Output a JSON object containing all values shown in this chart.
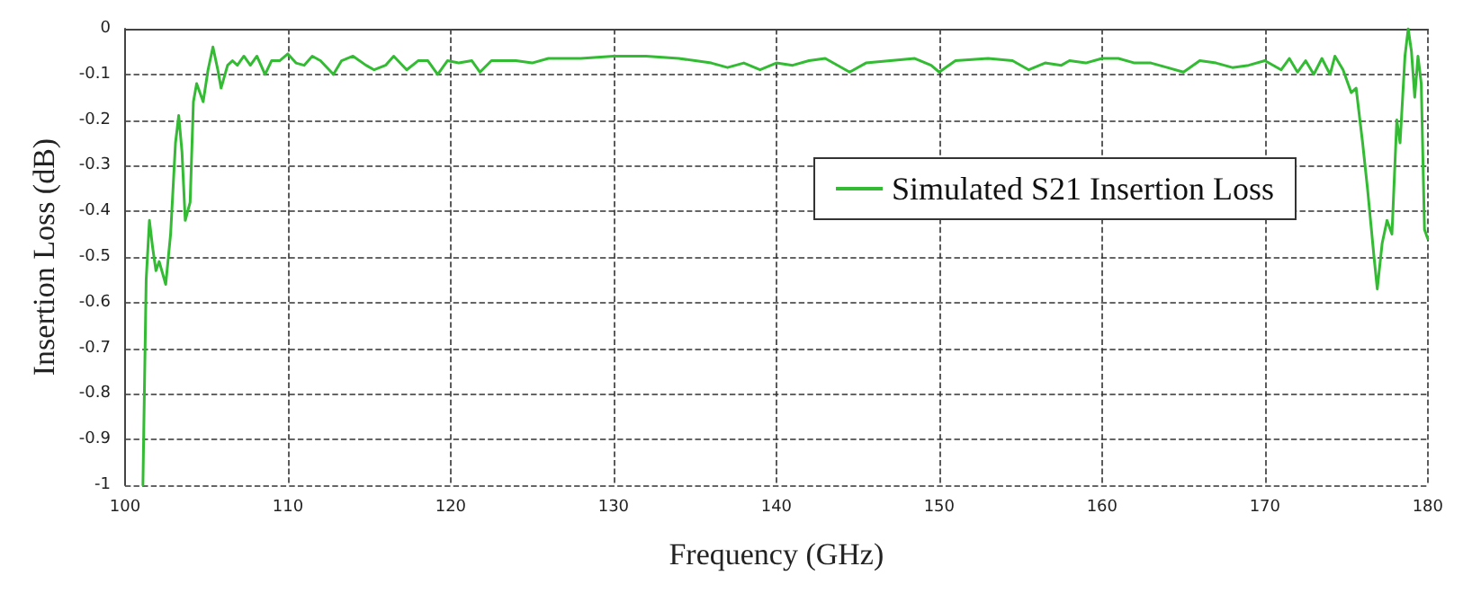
{
  "chart_data": {
    "type": "line",
    "xlabel": "Frequency (GHz)",
    "ylabel": "Insertion Loss (dB)",
    "xlim": [
      100,
      180
    ],
    "xticks": [
      100,
      110,
      120,
      130,
      140,
      150,
      160,
      170,
      180
    ],
    "ylim": [
      -1,
      0
    ],
    "yticks": [
      -1,
      -0.9,
      -0.8,
      -0.7,
      -0.6,
      -0.5,
      -0.4,
      -0.3,
      -0.2,
      -0.1,
      0
    ],
    "grid": true,
    "legend": "top right",
    "marker": "none",
    "line_style": "solid",
    "series": [
      {
        "name": "Simulated S21 Insertion Loss",
        "color": "#33bb33",
        "x": [
          101.1,
          101.3,
          101.5,
          101.7,
          101.9,
          102.1,
          102.5,
          102.8,
          103.1,
          103.3,
          103.5,
          103.7,
          104.0,
          104.2,
          104.4,
          104.8,
          105.1,
          105.4,
          105.7,
          105.9,
          106.3,
          106.6,
          106.9,
          107.3,
          107.7,
          108.1,
          108.6,
          109,
          109.5,
          110,
          110.5,
          111,
          111.5,
          112,
          112.8,
          113.3,
          114,
          114.8,
          115.3,
          116,
          116.5,
          117.3,
          118,
          118.6,
          119.2,
          119.8,
          120.5,
          121.3,
          121.8,
          122.5,
          124,
          125,
          126,
          128,
          130,
          132,
          134,
          136,
          137,
          138,
          139,
          140,
          141,
          142,
          143,
          144.5,
          145.5,
          147,
          148.5,
          149.5,
          150,
          151,
          153,
          154.5,
          155.5,
          156.5,
          157.5,
          158,
          159,
          160,
          161,
          162,
          163,
          164,
          165,
          166,
          167,
          168,
          169,
          170,
          171,
          171.5,
          172,
          172.5,
          173,
          173.5,
          174,
          174.3,
          174.8,
          175.3,
          175.6,
          176,
          176.3,
          176.7,
          176.9,
          177.2,
          177.5,
          177.8,
          178.1,
          178.3,
          178.6,
          178.8,
          179,
          179.2,
          179.4,
          179.6,
          179.8,
          180
        ],
        "values": [
          -1,
          -0.55,
          -0.42,
          -0.48,
          -0.53,
          -0.51,
          -0.56,
          -0.45,
          -0.25,
          -0.19,
          -0.27,
          -0.42,
          -0.38,
          -0.16,
          -0.12,
          -0.16,
          -0.09,
          -0.04,
          -0.09,
          -0.13,
          -0.08,
          -0.07,
          -0.08,
          -0.06,
          -0.08,
          -0.06,
          -0.1,
          -0.07,
          -0.07,
          -0.055,
          -0.075,
          -0.08,
          -0.06,
          -0.07,
          -0.1,
          -0.07,
          -0.06,
          -0.08,
          -0.09,
          -0.08,
          -0.06,
          -0.09,
          -0.07,
          -0.07,
          -0.1,
          -0.07,
          -0.075,
          -0.07,
          -0.095,
          -0.07,
          -0.07,
          -0.075,
          -0.065,
          -0.065,
          -0.06,
          -0.06,
          -0.065,
          -0.075,
          -0.085,
          -0.075,
          -0.09,
          -0.075,
          -0.08,
          -0.07,
          -0.065,
          -0.095,
          -0.075,
          -0.07,
          -0.065,
          -0.08,
          -0.095,
          -0.07,
          -0.065,
          -0.07,
          -0.09,
          -0.075,
          -0.08,
          -0.07,
          -0.075,
          -0.065,
          -0.065,
          -0.075,
          -0.075,
          -0.085,
          -0.095,
          -0.07,
          -0.075,
          -0.085,
          -0.08,
          -0.07,
          -0.09,
          -0.065,
          -0.095,
          -0.07,
          -0.1,
          -0.065,
          -0.1,
          -0.06,
          -0.09,
          -0.14,
          -0.13,
          -0.25,
          -0.35,
          -0.5,
          -0.57,
          -0.47,
          -0.42,
          -0.45,
          -0.2,
          -0.25,
          -0.06,
          0,
          -0.05,
          -0.15,
          -0.06,
          -0.12,
          -0.44,
          -0.46
        ]
      }
    ]
  }
}
